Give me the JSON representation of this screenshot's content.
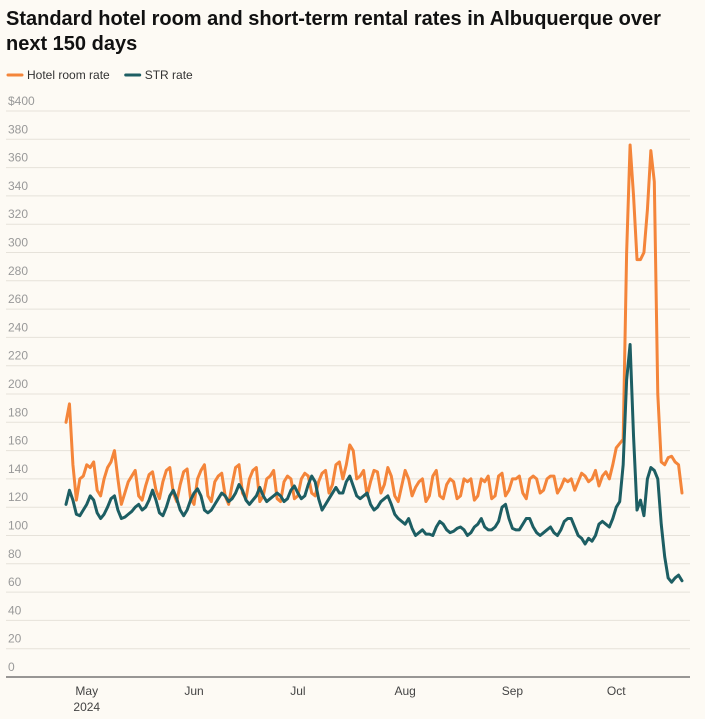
{
  "chart_data": {
    "type": "line",
    "title": "Standard hotel room and short-term rental rates in Albuquerque over next 150 days",
    "categories": [
      null,
      null,
      null,
      null,
      null,
      null,
      "May",
      null,
      null,
      null,
      null,
      null,
      null,
      null,
      null,
      null,
      null,
      null,
      null,
      null,
      null,
      null,
      null,
      null,
      null,
      null,
      null,
      null,
      null,
      null,
      null,
      null,
      null,
      null,
      null,
      null,
      null,
      "Jun",
      null,
      null,
      null,
      null,
      null,
      null,
      null,
      null,
      null,
      null,
      null,
      null,
      null,
      null,
      null,
      null,
      null,
      null,
      null,
      null,
      null,
      null,
      null,
      null,
      null,
      null,
      null,
      null,
      null,
      "Jul",
      null,
      null,
      null,
      null,
      null,
      null,
      null,
      null,
      null,
      null,
      null,
      null,
      null,
      null,
      null,
      null,
      null,
      null,
      null,
      null,
      null,
      null,
      null,
      null,
      null,
      null,
      null,
      null,
      null,
      null,
      "Aug",
      null,
      null,
      null,
      null,
      null,
      null,
      null,
      null,
      null,
      null,
      null,
      null,
      null,
      null,
      null,
      null,
      null,
      null,
      null,
      null,
      null,
      null,
      null,
      null,
      null,
      null,
      null,
      null,
      null,
      null,
      "Sep",
      null,
      null,
      null,
      null,
      null,
      null,
      null,
      null,
      null,
      null,
      null,
      null,
      null,
      null,
      null,
      null,
      null,
      null,
      null,
      null,
      null,
      null,
      null,
      null,
      null,
      null,
      null,
      null,
      null,
      "Oct",
      null,
      null,
      null,
      null,
      null,
      null,
      null,
      null,
      null,
      null,
      null,
      null,
      null,
      null,
      null,
      null,
      null,
      null,
      null
    ],
    "x_year_label": "2024",
    "series": [
      {
        "name": "Hotel room rate",
        "color": "#f4853a",
        "values": [
          180,
          193,
          150,
          125,
          140,
          142,
          150,
          148,
          152,
          132,
          128,
          140,
          148,
          152,
          160,
          140,
          122,
          130,
          138,
          142,
          146,
          128,
          125,
          135,
          143,
          145,
          132,
          126,
          138,
          146,
          148,
          130,
          124,
          136,
          145,
          147,
          126,
          122,
          140,
          146,
          150,
          128,
          124,
          138,
          142,
          144,
          128,
          122,
          136,
          148,
          150,
          130,
          126,
          140,
          146,
          148,
          124,
          128,
          140,
          142,
          146,
          126,
          124,
          138,
          142,
          140,
          126,
          128,
          140,
          144,
          142,
          130,
          128,
          138,
          144,
          146,
          130,
          136,
          150,
          152,
          140,
          150,
          164,
          160,
          140,
          142,
          146,
          128,
          138,
          146,
          145,
          130,
          136,
          148,
          142,
          128,
          124,
          135,
          146,
          140,
          128,
          134,
          138,
          140,
          124,
          128,
          142,
          146,
          128,
          126,
          136,
          140,
          138,
          126,
          128,
          140,
          138,
          140,
          125,
          128,
          140,
          138,
          142,
          126,
          128,
          142,
          144,
          128,
          132,
          140,
          140,
          142,
          130,
          126,
          140,
          142,
          140,
          130,
          132,
          140,
          142,
          142,
          130,
          134,
          140,
          138,
          140,
          132,
          138,
          144,
          142,
          138,
          140,
          146,
          135,
          142,
          145,
          140,
          150,
          162,
          165,
          168,
          300,
          376,
          340,
          295,
          295,
          300,
          330,
          372,
          350,
          200,
          152,
          150,
          155,
          156,
          152,
          150,
          130
        ]
      },
      {
        "name": "STR rate",
        "color": "#1d5e63",
        "values": [
          122,
          132,
          125,
          115,
          114,
          118,
          122,
          128,
          125,
          116,
          112,
          115,
          120,
          126,
          128,
          118,
          112,
          113,
          115,
          117,
          120,
          122,
          118,
          120,
          125,
          132,
          125,
          116,
          114,
          120,
          128,
          132,
          126,
          118,
          114,
          118,
          125,
          130,
          133,
          128,
          118,
          116,
          118,
          122,
          126,
          130,
          128,
          124,
          126,
          130,
          136,
          132,
          125,
          122,
          125,
          128,
          134,
          128,
          124,
          126,
          128,
          130,
          128,
          124,
          126,
          132,
          135,
          130,
          126,
          128,
          136,
          142,
          138,
          126,
          118,
          122,
          126,
          130,
          134,
          130,
          130,
          138,
          142,
          135,
          128,
          126,
          128,
          130,
          122,
          118,
          120,
          124,
          126,
          128,
          122,
          115,
          112,
          110,
          108,
          112,
          105,
          100,
          102,
          104,
          101,
          101,
          100,
          106,
          110,
          108,
          104,
          102,
          103,
          105,
          106,
          104,
          100,
          102,
          106,
          108,
          112,
          106,
          104,
          104,
          106,
          110,
          120,
          122,
          112,
          105,
          104,
          104,
          108,
          112,
          112,
          106,
          102,
          100,
          102,
          104,
          106,
          102,
          100,
          104,
          110,
          112,
          112,
          106,
          100,
          98,
          94,
          98,
          96,
          100,
          108,
          110,
          108,
          106,
          112,
          120,
          124,
          150,
          210,
          235,
          170,
          118,
          125,
          114,
          140,
          148,
          146,
          140,
          108,
          85,
          70,
          67,
          70,
          72,
          68
        ]
      }
    ],
    "ylim": [
      0,
      400
    ],
    "yticks": [
      0,
      20,
      40,
      60,
      80,
      100,
      120,
      140,
      160,
      180,
      200,
      220,
      240,
      260,
      280,
      300,
      320,
      340,
      360,
      380,
      {
        "value": 400,
        "label": "$400"
      }
    ],
    "grid": true,
    "legend": "top-left"
  }
}
